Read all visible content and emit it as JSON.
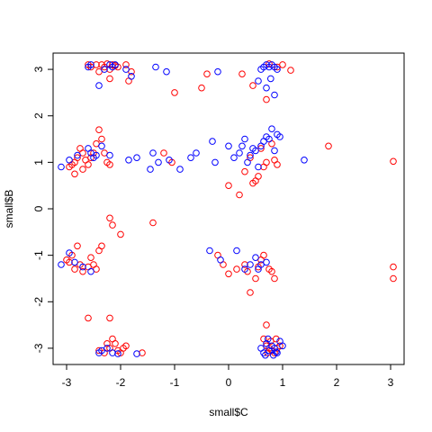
{
  "chart_data": {
    "type": "scatter",
    "xlabel": "small$C",
    "ylabel": "small$B",
    "xlim": [
      -3.25,
      3.25
    ],
    "ylim": [
      -3.35,
      3.35
    ],
    "xticks": [
      -3,
      -2,
      -1,
      0,
      1,
      2,
      3
    ],
    "yticks": [
      -3,
      -2,
      -1,
      0,
      1,
      2,
      3
    ],
    "xtick_labels": [
      "-3",
      "-2",
      "-1",
      "0",
      "1",
      "2",
      "3"
    ],
    "ytick_labels": [
      "-3",
      "-2",
      "-1",
      "0",
      "1",
      "2",
      "3"
    ],
    "marker": "open-circle",
    "grid": false,
    "series": [
      {
        "color": "#ff0000",
        "points": [
          [
            -2.6,
            3.1
          ],
          [
            -2.55,
            3.05
          ],
          [
            -2.45,
            3.1
          ],
          [
            -2.4,
            2.95
          ],
          [
            -2.35,
            3.1
          ],
          [
            -2.3,
            3.05
          ],
          [
            -2.25,
            3.12
          ],
          [
            -2.2,
            3.0
          ],
          [
            -2.15,
            3.1
          ],
          [
            -2.1,
            3.08
          ],
          [
            -2.05,
            3.05
          ],
          [
            -1.9,
            3.1
          ],
          [
            -1.8,
            2.95
          ],
          [
            -1.85,
            2.75
          ],
          [
            -2.2,
            2.8
          ],
          [
            -0.4,
            2.9
          ],
          [
            -0.5,
            2.6
          ],
          [
            -1.0,
            2.5
          ],
          [
            0.25,
            2.9
          ],
          [
            0.45,
            2.65
          ],
          [
            0.7,
            2.35
          ],
          [
            0.9,
            3.05
          ],
          [
            1.0,
            3.1
          ],
          [
            1.15,
            2.98
          ],
          [
            0.75,
            3.12
          ],
          [
            -2.9,
            0.95
          ],
          [
            -2.85,
            1.0
          ],
          [
            -2.8,
            1.1
          ],
          [
            -2.75,
            1.3
          ],
          [
            -2.7,
            1.2
          ],
          [
            -2.65,
            1.05
          ],
          [
            -2.6,
            0.95
          ],
          [
            -2.55,
            1.1
          ],
          [
            -2.5,
            1.2
          ],
          [
            -2.45,
            1.4
          ],
          [
            -2.4,
            1.7
          ],
          [
            -2.35,
            1.5
          ],
          [
            -2.3,
            1.2
          ],
          [
            -2.25,
            1.0
          ],
          [
            -2.2,
            0.95
          ],
          [
            -2.85,
            0.75
          ],
          [
            -2.95,
            0.9
          ],
          [
            -2.7,
            0.85
          ],
          [
            -1.2,
            1.2
          ],
          [
            -1.05,
            1.0
          ],
          [
            0.0,
            0.5
          ],
          [
            0.2,
            0.3
          ],
          [
            0.3,
            0.8
          ],
          [
            0.4,
            1.1
          ],
          [
            0.45,
            0.55
          ],
          [
            0.5,
            0.6
          ],
          [
            0.55,
            0.7
          ],
          [
            0.6,
            1.3
          ],
          [
            0.65,
            0.9
          ],
          [
            0.7,
            1.0
          ],
          [
            0.8,
            1.4
          ],
          [
            0.85,
            1.05
          ],
          [
            0.9,
            0.95
          ],
          [
            1.85,
            1.35
          ],
          [
            3.05,
            1.02
          ],
          [
            -2.2,
            -0.2
          ],
          [
            -2.15,
            -0.35
          ],
          [
            -2.0,
            -0.55
          ],
          [
            -1.4,
            -0.3
          ],
          [
            -3.0,
            -1.1
          ],
          [
            -2.9,
            -1.0
          ],
          [
            -2.8,
            -0.8
          ],
          [
            -2.75,
            -1.2
          ],
          [
            -2.7,
            -1.35
          ],
          [
            -2.6,
            -1.25
          ],
          [
            -2.55,
            -1.05
          ],
          [
            -2.5,
            -1.2
          ],
          [
            -2.4,
            -0.9
          ],
          [
            -2.35,
            -0.8
          ],
          [
            -2.85,
            -1.3
          ],
          [
            -2.95,
            -1.15
          ],
          [
            -2.45,
            -1.3
          ],
          [
            -0.2,
            -1.0
          ],
          [
            -0.1,
            -1.2
          ],
          [
            0.0,
            -1.4
          ],
          [
            0.15,
            -1.3
          ],
          [
            0.3,
            -1.2
          ],
          [
            0.35,
            -1.35
          ],
          [
            0.4,
            -1.8
          ],
          [
            0.5,
            -1.5
          ],
          [
            0.55,
            -1.25
          ],
          [
            0.6,
            -1.1
          ],
          [
            0.65,
            -1.0
          ],
          [
            0.75,
            -1.3
          ],
          [
            0.8,
            -1.35
          ],
          [
            0.85,
            -1.5
          ],
          [
            -2.6,
            -2.35
          ],
          [
            -2.2,
            -2.35
          ],
          [
            -2.25,
            -2.9
          ],
          [
            -2.2,
            -3.0
          ],
          [
            -2.15,
            -2.8
          ],
          [
            -2.1,
            -2.9
          ],
          [
            -2.05,
            -3.05
          ],
          [
            -2.0,
            -3.1
          ],
          [
            -1.95,
            -3.0
          ],
          [
            -1.9,
            -2.95
          ],
          [
            -1.6,
            -3.1
          ],
          [
            -2.4,
            -3.05
          ],
          [
            -2.3,
            -3.1
          ],
          [
            0.7,
            -2.5
          ],
          [
            0.65,
            -2.8
          ],
          [
            0.7,
            -2.95
          ],
          [
            0.75,
            -3.0
          ],
          [
            0.8,
            -3.05
          ],
          [
            0.85,
            -3.1
          ],
          [
            0.9,
            -3.0
          ],
          [
            0.95,
            -2.95
          ],
          [
            0.72,
            -3.1
          ],
          [
            0.78,
            -2.85
          ],
          [
            0.88,
            -2.8
          ],
          [
            3.05,
            -1.25
          ],
          [
            3.05,
            -1.5
          ]
        ]
      },
      {
        "color": "#0000ff",
        "points": [
          [
            -2.6,
            3.05
          ],
          [
            -2.55,
            3.1
          ],
          [
            -2.4,
            2.65
          ],
          [
            -2.3,
            3.0
          ],
          [
            -2.2,
            3.1
          ],
          [
            -2.15,
            3.05
          ],
          [
            -2.1,
            3.1
          ],
          [
            -1.9,
            3.0
          ],
          [
            -1.8,
            2.85
          ],
          [
            -1.35,
            3.05
          ],
          [
            -1.15,
            2.95
          ],
          [
            -0.2,
            2.95
          ],
          [
            0.55,
            2.75
          ],
          [
            0.6,
            3.0
          ],
          [
            0.65,
            3.05
          ],
          [
            0.7,
            3.1
          ],
          [
            0.75,
            3.05
          ],
          [
            0.8,
            3.1
          ],
          [
            0.85,
            3.05
          ],
          [
            0.9,
            3.0
          ],
          [
            0.7,
            2.6
          ],
          [
            0.85,
            2.45
          ],
          [
            0.78,
            2.8
          ],
          [
            -3.1,
            0.9
          ],
          [
            -2.95,
            1.05
          ],
          [
            -2.8,
            1.15
          ],
          [
            -2.6,
            1.3
          ],
          [
            -2.55,
            1.2
          ],
          [
            -2.5,
            1.1
          ],
          [
            -2.45,
            1.15
          ],
          [
            -2.35,
            1.35
          ],
          [
            -2.2,
            1.15
          ],
          [
            -1.85,
            1.05
          ],
          [
            -1.7,
            1.1
          ],
          [
            -1.45,
            0.85
          ],
          [
            -1.4,
            1.2
          ],
          [
            -1.3,
            1.0
          ],
          [
            -1.1,
            1.05
          ],
          [
            -0.9,
            0.85
          ],
          [
            -0.7,
            1.1
          ],
          [
            -0.6,
            1.2
          ],
          [
            -0.3,
            1.45
          ],
          [
            -0.25,
            1.0
          ],
          [
            0.0,
            1.35
          ],
          [
            0.1,
            1.1
          ],
          [
            0.2,
            1.2
          ],
          [
            0.25,
            1.35
          ],
          [
            0.3,
            1.5
          ],
          [
            0.35,
            1.0
          ],
          [
            0.4,
            1.15
          ],
          [
            0.45,
            1.3
          ],
          [
            0.5,
            1.25
          ],
          [
            0.55,
            0.9
          ],
          [
            0.6,
            1.35
          ],
          [
            0.65,
            1.45
          ],
          [
            0.7,
            1.55
          ],
          [
            0.75,
            1.5
          ],
          [
            0.8,
            1.72
          ],
          [
            0.85,
            1.25
          ],
          [
            0.9,
            1.6
          ],
          [
            0.95,
            1.55
          ],
          [
            1.4,
            1.05
          ],
          [
            -3.1,
            -1.2
          ],
          [
            -2.95,
            -0.95
          ],
          [
            -2.85,
            -1.15
          ],
          [
            -2.7,
            -1.25
          ],
          [
            -2.55,
            -1.35
          ],
          [
            -0.35,
            -0.9
          ],
          [
            -0.15,
            -1.1
          ],
          [
            0.15,
            -0.9
          ],
          [
            0.3,
            -1.3
          ],
          [
            0.4,
            -1.2
          ],
          [
            0.5,
            -1.05
          ],
          [
            0.55,
            -1.3
          ],
          [
            0.6,
            -1.2
          ],
          [
            0.7,
            -1.15
          ],
          [
            -2.4,
            -3.1
          ],
          [
            -2.35,
            -3.05
          ],
          [
            -2.25,
            -3.0
          ],
          [
            -2.15,
            -3.1
          ],
          [
            -2.05,
            -3.12
          ],
          [
            -1.7,
            -3.12
          ],
          [
            0.6,
            -3.0
          ],
          [
            0.65,
            -3.1
          ],
          [
            0.7,
            -2.9
          ],
          [
            0.75,
            -3.05
          ],
          [
            0.8,
            -2.95
          ],
          [
            0.85,
            -3.0
          ],
          [
            0.9,
            -3.1
          ],
          [
            0.95,
            -2.85
          ],
          [
            1.0,
            -2.95
          ],
          [
            0.68,
            -3.15
          ],
          [
            0.83,
            -3.15
          ],
          [
            0.73,
            -2.8
          ],
          [
            0.88,
            -3.08
          ]
        ]
      }
    ]
  }
}
